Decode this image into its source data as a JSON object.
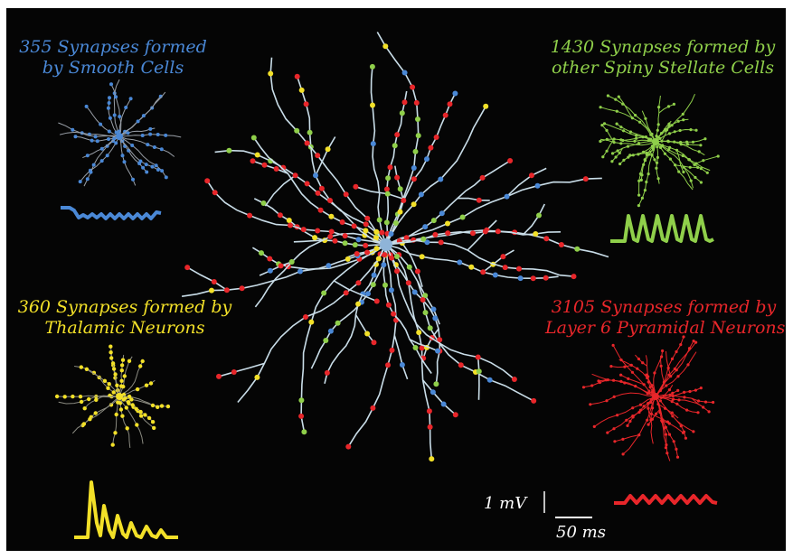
{
  "labels": {
    "smooth": {
      "line1": "355 Synapses formed",
      "line2": "by Smooth Cells",
      "color": "#4a88d6"
    },
    "spiny": {
      "line1": "1430 Synapses formed by",
      "line2": "other Spiny Stellate Cells",
      "color": "#8fcf4a"
    },
    "thalamic": {
      "line1": "360 Synapses formed by",
      "line2": "Thalamic Neurons",
      "color": "#f2e028"
    },
    "layer6": {
      "line1": "3105 Synapses formed by",
      "line2": "Layer 6 Pyramidal Neurons",
      "color": "#e8262a"
    }
  },
  "scale_bar": {
    "voltage": "1 mV",
    "time": "50 ms"
  }
}
